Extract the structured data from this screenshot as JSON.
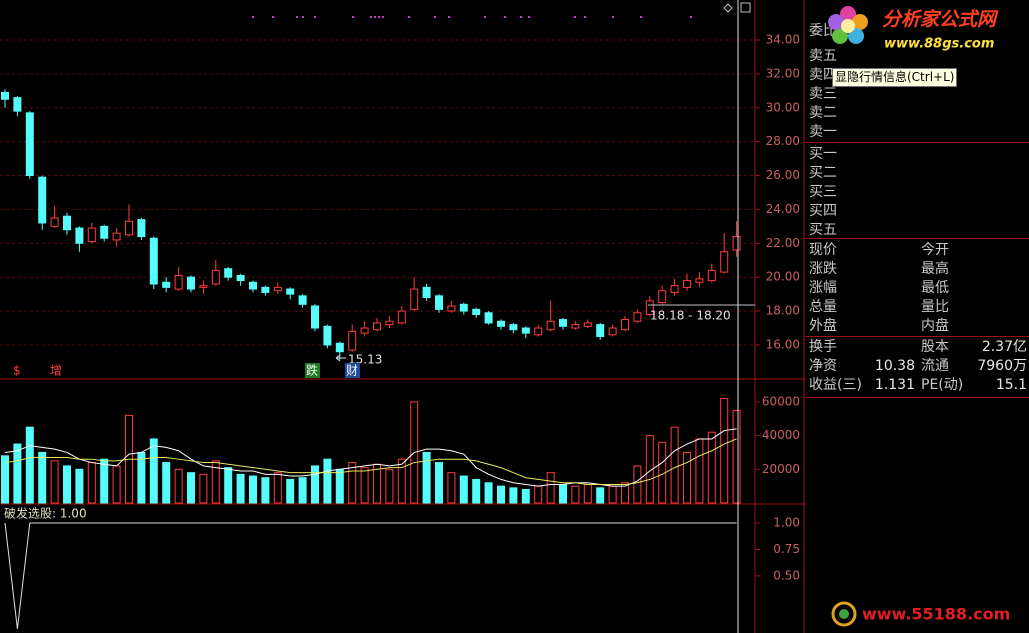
{
  "chart_data": [
    {
      "type": "candlestick",
      "open": [
        30.9,
        30.6,
        29.7,
        25.9,
        23.0,
        23.6,
        22.9,
        22.1,
        23.0,
        22.2,
        22.5,
        23.4,
        22.3,
        19.7,
        19.3,
        20.0,
        19.4,
        19.6,
        20.5,
        20.1,
        19.7,
        19.4,
        19.2,
        19.3,
        18.9,
        18.3,
        17.1,
        16.1,
        15.7,
        16.7,
        16.9,
        17.2,
        17.3,
        18.1,
        19.4,
        18.9,
        18.0,
        18.4,
        18.1,
        17.9,
        17.4,
        17.2,
        17.0,
        16.6,
        16.9,
        17.5,
        17.0,
        17.1,
        17.2,
        16.6,
        16.9,
        17.4,
        17.8,
        18.5,
        19.1,
        19.4,
        19.7,
        19.8,
        20.3,
        21.6
      ],
      "high": [
        31.1,
        30.7,
        29.8,
        26.0,
        24.2,
        23.8,
        23.0,
        23.2,
        23.1,
        22.9,
        24.3,
        23.5,
        22.4,
        20.0,
        20.6,
        20.1,
        19.8,
        21.0,
        20.6,
        20.2,
        19.8,
        19.5,
        19.7,
        19.4,
        19.0,
        18.4,
        17.2,
        16.2,
        17.2,
        17.4,
        17.6,
        17.7,
        18.3,
        20.0,
        19.6,
        19.0,
        18.6,
        18.5,
        18.2,
        18.0,
        17.5,
        17.3,
        17.1,
        17.2,
        18.6,
        17.6,
        17.4,
        17.5,
        17.3,
        17.2,
        17.7,
        18.1,
        18.9,
        19.5,
        19.9,
        20.2,
        20.3,
        20.8,
        22.6,
        23.3
      ],
      "low": [
        30.0,
        29.5,
        25.8,
        22.8,
        22.9,
        22.5,
        21.5,
        22.0,
        22.1,
        21.8,
        22.4,
        22.2,
        19.3,
        19.1,
        19.2,
        19.1,
        19.0,
        19.5,
        19.8,
        19.5,
        19.1,
        18.9,
        19.0,
        18.7,
        18.2,
        16.8,
        15.8,
        15.13,
        15.6,
        16.5,
        16.8,
        17.0,
        17.2,
        18.0,
        18.6,
        17.9,
        17.9,
        17.8,
        17.6,
        17.2,
        16.9,
        16.7,
        16.4,
        16.5,
        16.8,
        16.9,
        16.9,
        17.0,
        16.3,
        16.5,
        16.8,
        17.3,
        17.7,
        18.4,
        18.9,
        19.2,
        19.4,
        19.7,
        20.2,
        21.2
      ],
      "close": [
        30.5,
        29.8,
        26.0,
        23.2,
        23.5,
        22.8,
        22.0,
        22.9,
        22.3,
        22.6,
        23.3,
        22.4,
        19.6,
        19.4,
        20.1,
        19.3,
        19.5,
        20.4,
        20.0,
        19.8,
        19.3,
        19.1,
        19.4,
        19.0,
        18.4,
        17.0,
        16.0,
        15.6,
        16.8,
        17.0,
        17.3,
        17.4,
        18.0,
        19.3,
        18.8,
        18.1,
        18.3,
        18.0,
        17.8,
        17.3,
        17.1,
        16.9,
        16.7,
        17.0,
        17.4,
        17.1,
        17.2,
        17.3,
        16.5,
        17.0,
        17.5,
        17.9,
        18.6,
        19.2,
        19.5,
        19.8,
        19.9,
        20.4,
        21.5,
        22.4
      ],
      "ylim": [
        14.05,
        36.36
      ],
      "yticks": [
        {
          "value": 16,
          "label": "16.00"
        },
        {
          "value": 18,
          "label": "18.00"
        },
        {
          "value": 20,
          "label": "20.00"
        },
        {
          "value": 22,
          "label": "22.00"
        },
        {
          "value": 24,
          "label": "24.00"
        },
        {
          "value": 26,
          "label": "26.00"
        },
        {
          "value": 28,
          "label": "28.00"
        },
        {
          "value": 30,
          "label": "30.00"
        },
        {
          "value": 32,
          "label": "32.00"
        },
        {
          "value": 34,
          "label": "34.00"
        }
      ],
      "grid": true,
      "up_color": "#ff3c3c",
      "down_color": "#54fcfc",
      "annotations": [
        "15.13",
        "18.18 - 18.20"
      ],
      "markers": [
        "$",
        "增",
        "跌",
        "财"
      ]
    },
    {
      "type": "bar",
      "values": [
        28000,
        35000,
        45000,
        30000,
        25000,
        22000,
        20000,
        24000,
        26000,
        22000,
        52000,
        30000,
        38000,
        24000,
        20000,
        18000,
        17000,
        25000,
        21000,
        17000,
        16000,
        15000,
        18000,
        14000,
        15000,
        22000,
        26000,
        20000,
        24000,
        21000,
        23000,
        20000,
        26000,
        60000,
        30000,
        24000,
        18000,
        16000,
        14000,
        12000,
        10000,
        9000,
        8000,
        10000,
        18000,
        11000,
        10000,
        11000,
        9000,
        10000,
        12000,
        22000,
        40000,
        36000,
        45000,
        30000,
        38000,
        42000,
        62000,
        55000
      ],
      "lines": [
        {
          "color": "#ffffff",
          "values": [
            30000,
            31000,
            34000,
            33000,
            32000,
            30000,
            26000,
            24000,
            23000,
            22000,
            29000,
            30000,
            34000,
            33000,
            31000,
            26000,
            22000,
            21000,
            20000,
            19000,
            19000,
            17000,
            17000,
            16000,
            16000,
            17000,
            19000,
            20000,
            21000,
            22000,
            23000,
            22000,
            23000,
            30000,
            32000,
            32000,
            31000,
            29000,
            21000,
            17000,
            14000,
            12000,
            11000,
            10000,
            11000,
            11000,
            12000,
            12000,
            11000,
            10000,
            10000,
            13000,
            19000,
            24000,
            31000,
            35000,
            38000,
            38000,
            43000,
            44000
          ]
        },
        {
          "color": "#e8e860",
          "values": [
            24000,
            25000,
            27000,
            27000,
            27000,
            27000,
            26000,
            26000,
            25000,
            25000,
            26000,
            26000,
            27000,
            27000,
            26000,
            25000,
            24000,
            24000,
            23000,
            22000,
            21000,
            20000,
            19000,
            18000,
            18000,
            18000,
            18000,
            18000,
            19000,
            19000,
            20000,
            21000,
            21000,
            24000,
            25000,
            26000,
            26000,
            26000,
            25000,
            23000,
            21000,
            18000,
            15000,
            14000,
            13000,
            12000,
            12000,
            11000,
            11000,
            11000,
            11000,
            12000,
            14000,
            17000,
            21000,
            24000,
            28000,
            31000,
            35000,
            38000
          ]
        }
      ],
      "ylim": [
        0,
        73000
      ],
      "yticks": [
        20000,
        40000,
        60000
      ]
    },
    {
      "type": "line",
      "title": "破发选股: 1.00",
      "color": "#e0e0e0",
      "values": [
        1,
        0,
        1,
        1,
        1,
        1,
        1,
        1,
        1,
        1,
        1,
        1,
        1,
        1,
        1,
        1,
        1,
        1,
        1,
        1,
        1,
        1,
        1,
        1,
        1,
        1,
        1,
        1,
        1,
        1,
        1,
        1,
        1,
        1,
        1,
        1,
        1,
        1,
        1,
        1,
        1,
        1,
        1,
        1,
        1,
        1,
        1,
        1,
        1,
        1,
        1,
        1,
        1,
        1,
        1,
        1,
        1,
        1,
        1,
        1
      ],
      "ylim": [
        -0.04,
        1.17
      ],
      "yticks": [
        {
          "value": 0.5,
          "label": "0.50"
        },
        {
          "value": 0.75,
          "label": "0.75"
        },
        {
          "value": 1,
          "label": "1.00"
        }
      ]
    }
  ],
  "quote_panel": {
    "order_rows": [
      "委比",
      "卖五",
      "卖四",
      "卖三",
      "卖二",
      "卖一",
      "买一",
      "买二",
      "买三",
      "买四",
      "买五"
    ],
    "price_rows": [
      [
        "现价",
        "今开"
      ],
      [
        "涨跌",
        "最高"
      ],
      [
        "涨幅",
        "最低"
      ],
      [
        "总量",
        "量比"
      ],
      [
        "外盘",
        "内盘"
      ]
    ],
    "stat_rows": [
      [
        "换手",
        "",
        "股本",
        "2.37亿"
      ],
      [
        "净资",
        "10.38",
        "流通",
        "7960万"
      ],
      [
        "收益(三)",
        "1.131",
        "PE(动)",
        "15.1"
      ]
    ],
    "tooltip": "显隐行情信息(Ctrl+L)"
  },
  "watermarks": {
    "logo_title": "分析家公式网",
    "logo_url": "www.88gs.com",
    "bottom_url": "www.55188.com"
  }
}
